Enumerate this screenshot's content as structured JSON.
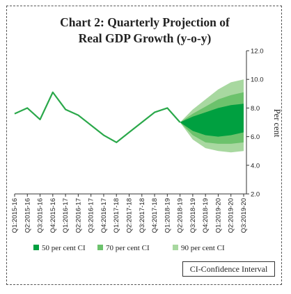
{
  "chart_data": {
    "type": "line",
    "title_line1": "Chart 2: Quarterly Projection of",
    "title_line2": "Real GDP Growth (y-o-y)",
    "ylabel": "Per cent",
    "ylim": [
      2.0,
      12.0
    ],
    "yticks": [
      "2.0",
      "4.0",
      "6.0",
      "8.0",
      "10.0",
      "12.0"
    ],
    "categories": [
      "Q1:2015-16",
      "Q2:2015-16",
      "Q3:2015-16",
      "Q4:2015-16",
      "Q1:2016-17",
      "Q2:2016-17",
      "Q3:2016-17",
      "Q4:2016-17",
      "Q1:2017-18",
      "Q2:2017-18",
      "Q3:2017-18",
      "Q4:2017-18",
      "Q1:2018-19",
      "Q2:2018-19",
      "Q3:2018-19",
      "Q4:2018-19",
      "Q1:2019-20",
      "Q2:2019-20",
      "Q3:2019-20"
    ],
    "series": [
      {
        "values": [
          7.6,
          8.0,
          7.2,
          9.1,
          7.9,
          7.5,
          6.8,
          6.1,
          5.6,
          6.3,
          7.0,
          7.7,
          8.0,
          7.0,
          null,
          null,
          null,
          null,
          null
        ],
        "color": "#2aa84a"
      }
    ],
    "bands": [
      {
        "name": "90 per cent CI",
        "color": "#a8d8a0",
        "x": [
          13,
          14,
          15,
          16,
          17,
          18
        ],
        "upper": [
          7.0,
          7.9,
          8.6,
          9.3,
          9.8,
          10.0
        ],
        "lower": [
          7.0,
          5.8,
          5.2,
          5.0,
          4.9,
          5.0
        ]
      },
      {
        "name": "70 per cent CI",
        "color": "#6cc26c",
        "x": [
          13,
          14,
          15,
          16,
          17,
          18
        ],
        "upper": [
          7.0,
          7.6,
          8.1,
          8.6,
          8.9,
          9.1
        ],
        "lower": [
          7.0,
          6.1,
          5.6,
          5.5,
          5.5,
          5.6
        ]
      },
      {
        "name": "50 per cent CI",
        "color": "#00a040",
        "x": [
          13,
          14,
          15,
          16,
          17,
          18
        ],
        "upper": [
          7.0,
          7.4,
          7.7,
          8.0,
          8.2,
          8.3
        ],
        "lower": [
          7.0,
          6.4,
          6.1,
          6.0,
          6.1,
          6.3
        ]
      }
    ],
    "legend": [
      {
        "label": "50 per cent CI",
        "color": "#00a040"
      },
      {
        "label": "70 per cent CI",
        "color": "#6cc26c"
      },
      {
        "label": "90 per cent CI",
        "color": "#a8d8a0"
      }
    ],
    "note": "CI-Confidence Interval"
  }
}
